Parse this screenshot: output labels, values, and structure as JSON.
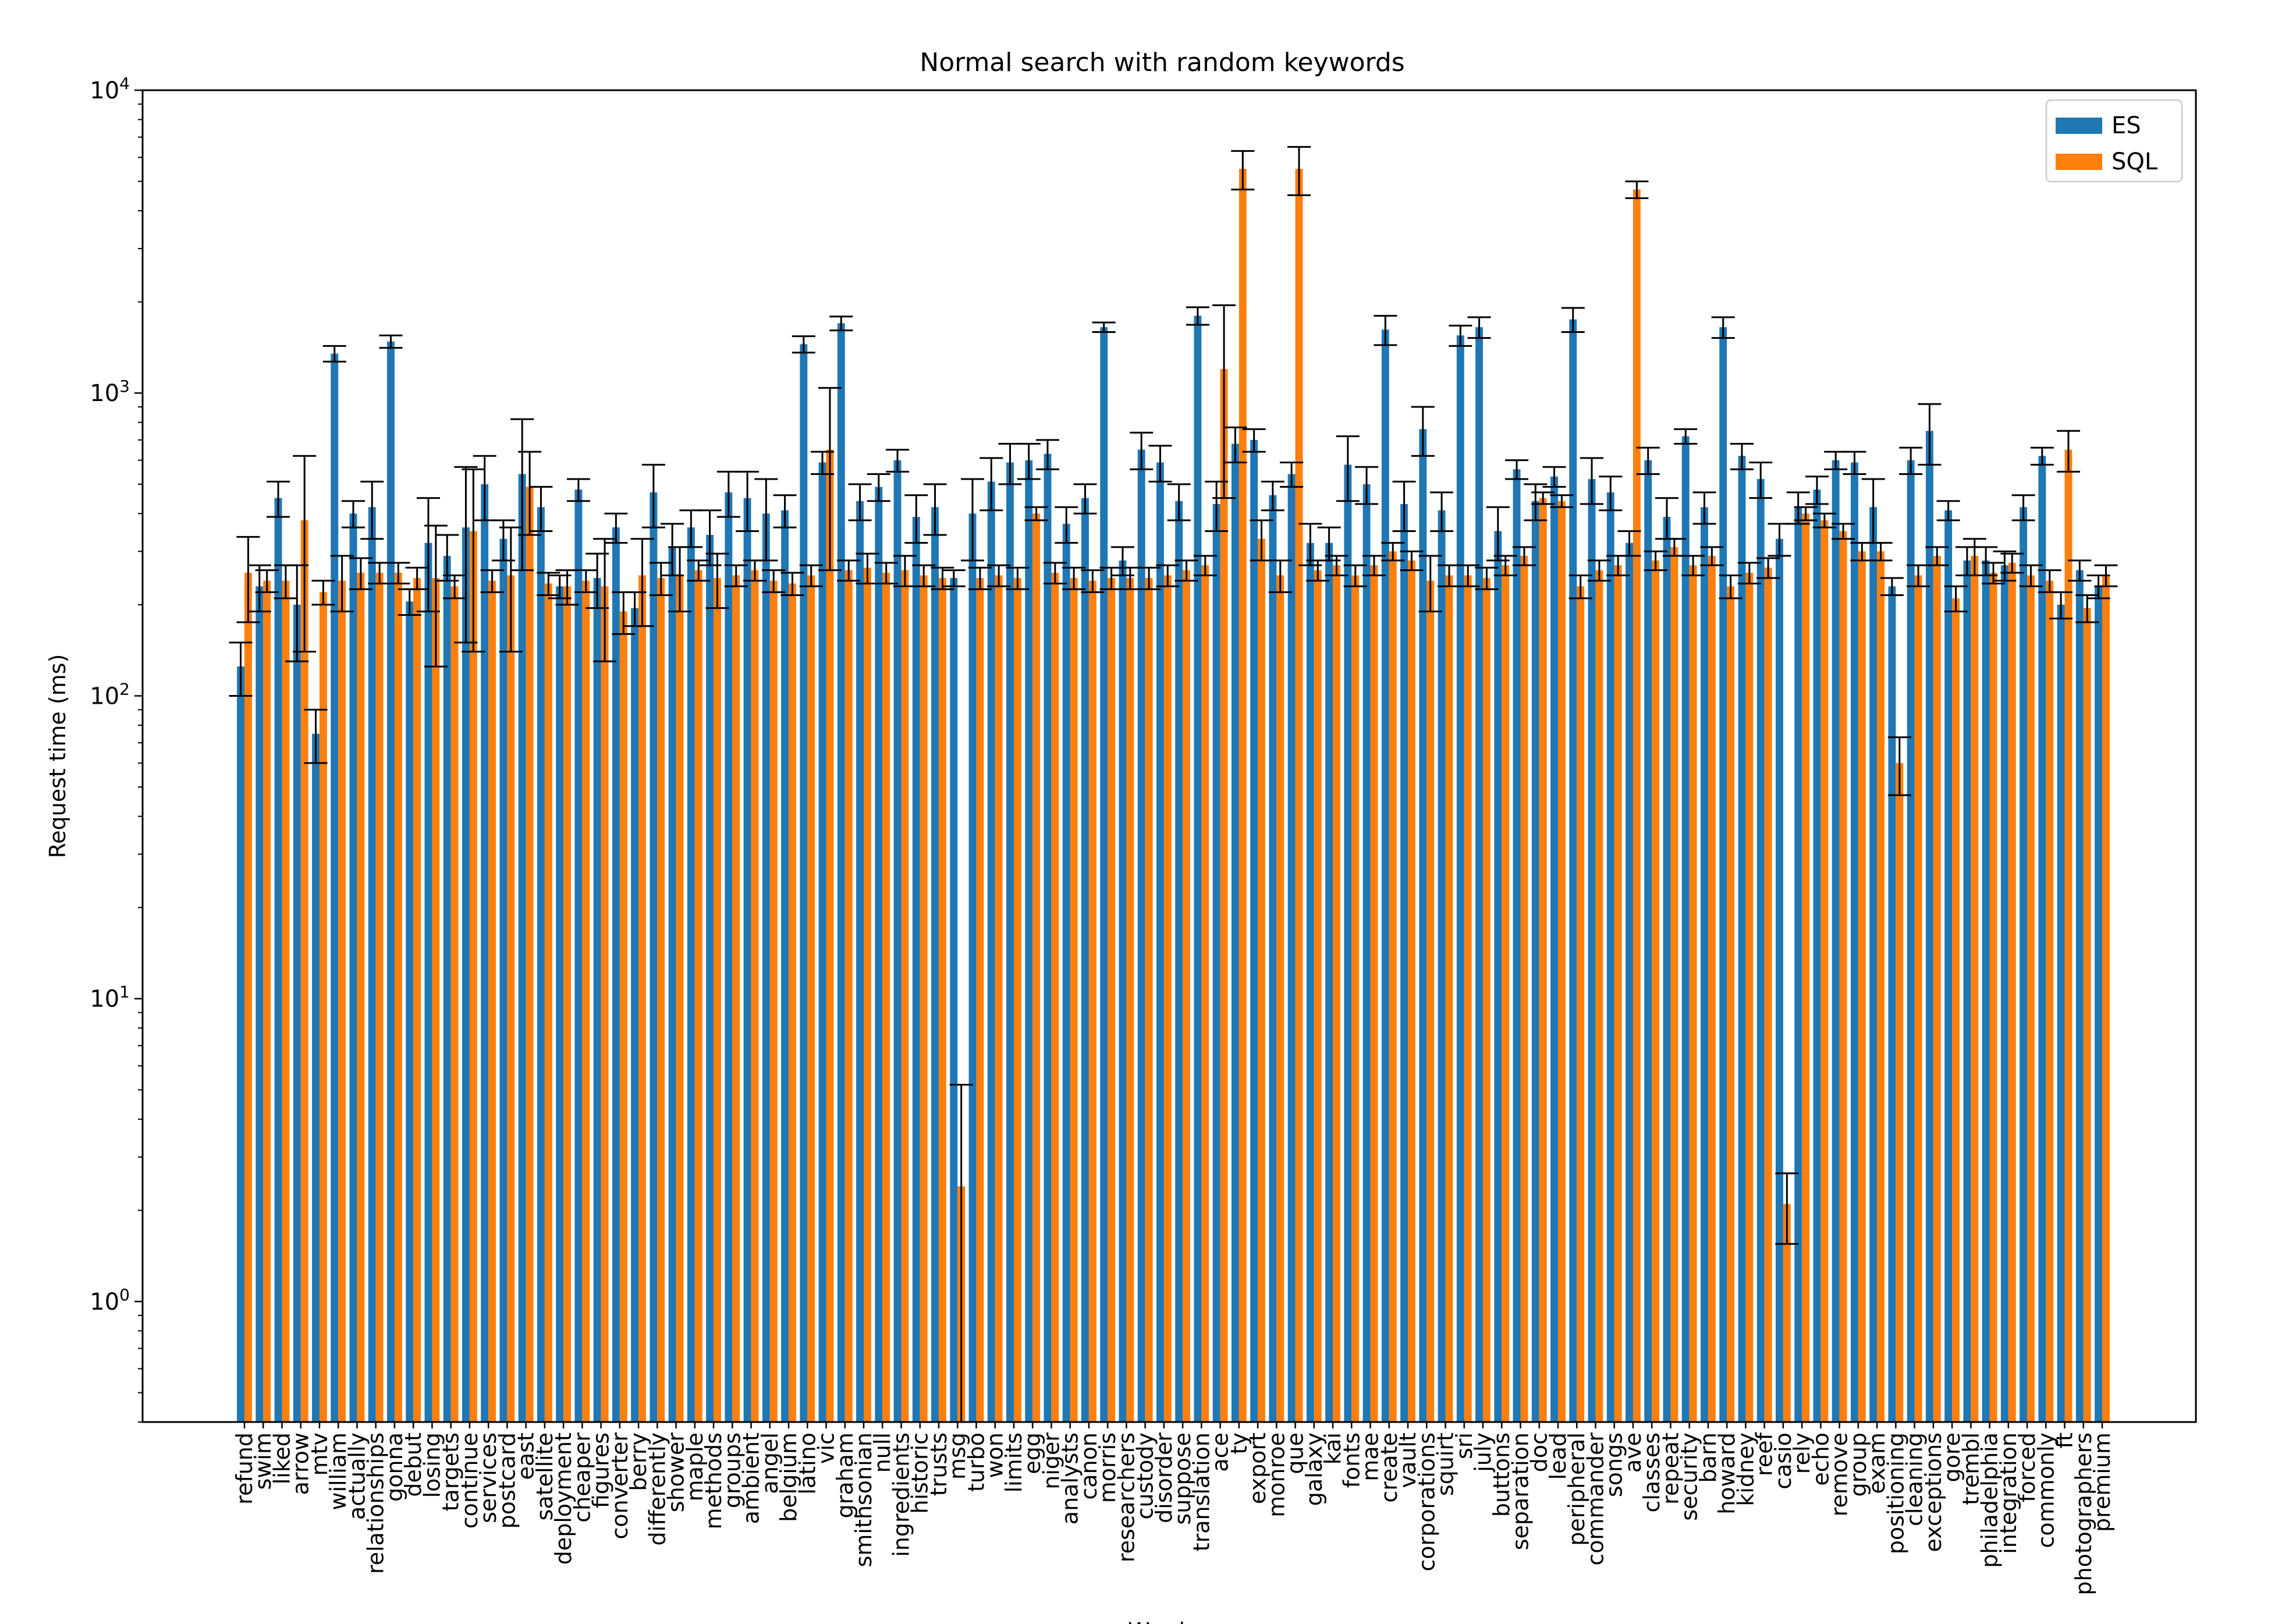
{
  "chart_data": {
    "type": "bar",
    "title": "Normal search with random keywords",
    "xlabel": "Words",
    "ylabel": "Request time (ms)",
    "yscale": "log",
    "ylim": [
      0.4,
      10000
    ],
    "yticks": [
      {
        "value": 1,
        "base": "10",
        "exp": "0"
      },
      {
        "value": 10,
        "base": "10",
        "exp": "1"
      },
      {
        "value": 100,
        "base": "10",
        "exp": "2"
      },
      {
        "value": 1000,
        "base": "10",
        "exp": "3"
      },
      {
        "value": 10000,
        "base": "10",
        "exp": "4"
      }
    ],
    "legend_position": "top-right",
    "error_bars": true,
    "colors": {
      "ES": "#1f77b4",
      "SQL": "#ff7f0e",
      "error": "#000000"
    },
    "categories": [
      "refund",
      "swim",
      "liked",
      "arrow",
      "mtv",
      "william",
      "actually",
      "relationships",
      "gonna",
      "debut",
      "losing",
      "targets",
      "continue",
      "services",
      "postcard",
      "east",
      "satellite",
      "deployment",
      "cheaper",
      "figures",
      "converter",
      "berry",
      "differently",
      "shower",
      "maple",
      "methods",
      "groups",
      "ambient",
      "angel",
      "belgium",
      "latino",
      "vic",
      "graham",
      "smithsonian",
      "null",
      "ingredients",
      "historic",
      "trusts",
      "msg",
      "turbo",
      "won",
      "limits",
      "egg",
      "niger",
      "analysts",
      "canon",
      "morris",
      "researchers",
      "custody",
      "disorder",
      "suppose",
      "translation",
      "ace",
      "ty",
      "export",
      "monroe",
      "que",
      "galaxy",
      "kai",
      "fonts",
      "mae",
      "create",
      "vault",
      "corporations",
      "squirt",
      "sri",
      "july",
      "buttons",
      "separation",
      "doc",
      "lead",
      "peripheral",
      "commander",
      "songs",
      "ave",
      "classes",
      "repeat",
      "security",
      "barn",
      "howard",
      "kidney",
      "reef",
      "casio",
      "rely",
      "echo",
      "remove",
      "group",
      "exam",
      "positioning",
      "cleaning",
      "exceptions",
      "gore",
      "trembl",
      "philadelphia",
      "integration",
      "forced",
      "commonly",
      "ft",
      "photographers",
      "premium"
    ],
    "series": [
      {
        "name": "ES",
        "values": [
          125,
          230,
          450,
          200,
          75,
          1350,
          400,
          420,
          1480,
          205,
          320,
          290,
          360,
          500,
          330,
          540,
          420,
          230,
          480,
          245,
          360,
          195,
          470,
          310,
          360,
          340,
          470,
          450,
          400,
          410,
          1450,
          590,
          1700,
          440,
          490,
          600,
          390,
          420,
          245,
          400,
          510,
          590,
          600,
          630,
          370,
          450,
          1650,
          280,
          650,
          590,
          440,
          1800,
          430,
          680,
          700,
          460,
          540,
          320,
          320,
          580,
          500,
          1620,
          430,
          760,
          410,
          1550,
          1650,
          350,
          560,
          440,
          530,
          1750,
          520,
          470,
          320,
          600,
          390,
          720,
          420,
          1650,
          620,
          520,
          330,
          420,
          480,
          600,
          590,
          420,
          230,
          600,
          750,
          410,
          280,
          280,
          270,
          420,
          620,
          200,
          260,
          230
        ],
        "errors": [
          25,
          40,
          60,
          70,
          15,
          80,
          40,
          90,
          70,
          20,
          130,
          50,
          210,
          120,
          50,
          280,
          70,
          20,
          40,
          50,
          40,
          25,
          110,
          60,
          50,
          70,
          80,
          100,
          120,
          50,
          90,
          50,
          90,
          60,
          50,
          50,
          70,
          80,
          15,
          120,
          100,
          90,
          80,
          70,
          50,
          50,
          60,
          30,
          90,
          80,
          60,
          120,
          80,
          90,
          60,
          50,
          50,
          50,
          40,
          140,
          70,
          180,
          80,
          140,
          60,
          120,
          130,
          70,
          40,
          60,
          40,
          160,
          90,
          60,
          30,
          60,
          60,
          40,
          50,
          130,
          60,
          70,
          40,
          50,
          50,
          40,
          50,
          100,
          15,
          60,
          170,
          30,
          30,
          30,
          30,
          40,
          40,
          20,
          20,
          20
        ]
      },
      {
        "name": "SQL",
        "values": [
          255,
          240,
          240,
          380,
          220,
          240,
          255,
          255,
          255,
          245,
          245,
          230,
          350,
          240,
          250,
          490,
          235,
          230,
          240,
          230,
          190,
          250,
          245,
          250,
          260,
          245,
          250,
          260,
          240,
          235,
          250,
          650,
          260,
          265,
          255,
          260,
          250,
          245,
          2.4,
          245,
          250,
          245,
          400,
          255,
          245,
          240,
          245,
          245,
          245,
          250,
          260,
          270,
          1200,
          5500,
          330,
          250,
          5500,
          260,
          270,
          250,
          270,
          300,
          280,
          240,
          250,
          250,
          245,
          270,
          290,
          450,
          440,
          230,
          260,
          270,
          4700,
          280,
          310,
          270,
          290,
          230,
          255,
          265,
          2.1,
          400,
          380,
          350,
          300,
          300,
          60,
          250,
          290,
          210,
          290,
          255,
          275,
          250,
          240,
          650,
          195,
          250
        ],
        "errors": [
          80,
          20,
          30,
          240,
          20,
          50,
          30,
          20,
          20,
          20,
          120,
          20,
          210,
          20,
          110,
          150,
          20,
          30,
          20,
          100,
          30,
          80,
          30,
          60,
          20,
          50,
          20,
          20,
          20,
          20,
          20,
          390,
          20,
          30,
          20,
          30,
          20,
          20,
          2.8,
          20,
          20,
          20,
          20,
          20,
          20,
          20,
          20,
          20,
          20,
          20,
          20,
          20,
          750,
          800,
          50,
          30,
          1000,
          20,
          20,
          20,
          20,
          20,
          20,
          50,
          20,
          20,
          20,
          20,
          20,
          20,
          20,
          20,
          20,
          20,
          300,
          20,
          20,
          20,
          20,
          20,
          20,
          20,
          0.55,
          20,
          20,
          20,
          20,
          20,
          13,
          20,
          20,
          20,
          40,
          20,
          20,
          20,
          20,
          100,
          20,
          20
        ]
      }
    ]
  }
}
